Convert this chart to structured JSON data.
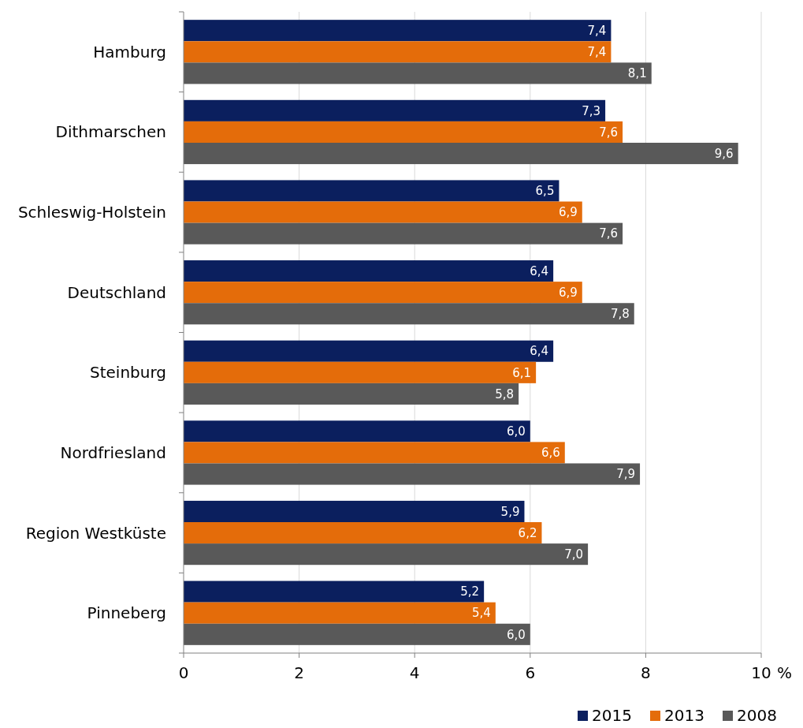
{
  "chart_data": {
    "type": "bar",
    "orientation": "horizontal",
    "categories": [
      "Hamburg",
      "Dithmarschen",
      "Schleswig-Holstein",
      "Deutschland",
      "Steinburg",
      "Nordfriesland",
      "Region Westküste",
      "Pinneberg"
    ],
    "series": [
      {
        "name": "2015",
        "color": "#0b1f5e",
        "values": [
          7.4,
          7.3,
          6.5,
          6.4,
          6.4,
          6.0,
          5.9,
          5.2
        ],
        "value_labels": [
          "7,4",
          "7,3",
          "6,5",
          "6,4",
          "6,4",
          "6,0",
          "5,9",
          "5,2"
        ]
      },
      {
        "name": "2013",
        "color": "#e46c0a",
        "values": [
          7.4,
          7.6,
          6.9,
          6.9,
          6.1,
          6.6,
          6.2,
          5.4
        ],
        "value_labels": [
          "7,4",
          "7,6",
          "6,9",
          "6,9",
          "6,1",
          "6,6",
          "6,2",
          "5,4"
        ]
      },
      {
        "name": "2008",
        "color": "#595959",
        "values": [
          8.1,
          9.6,
          7.6,
          7.8,
          5.8,
          7.9,
          7.0,
          6.0
        ],
        "value_labels": [
          "8,1",
          "9,6",
          "7,6",
          "7,8",
          "5,8",
          "7,9",
          "7,0",
          "6,0"
        ]
      }
    ],
    "xlim": [
      0,
      10
    ],
    "xticks": [
      0,
      2,
      4,
      6,
      8,
      10
    ],
    "xlabel": "%",
    "grid": "x",
    "legend": "bottom right"
  }
}
